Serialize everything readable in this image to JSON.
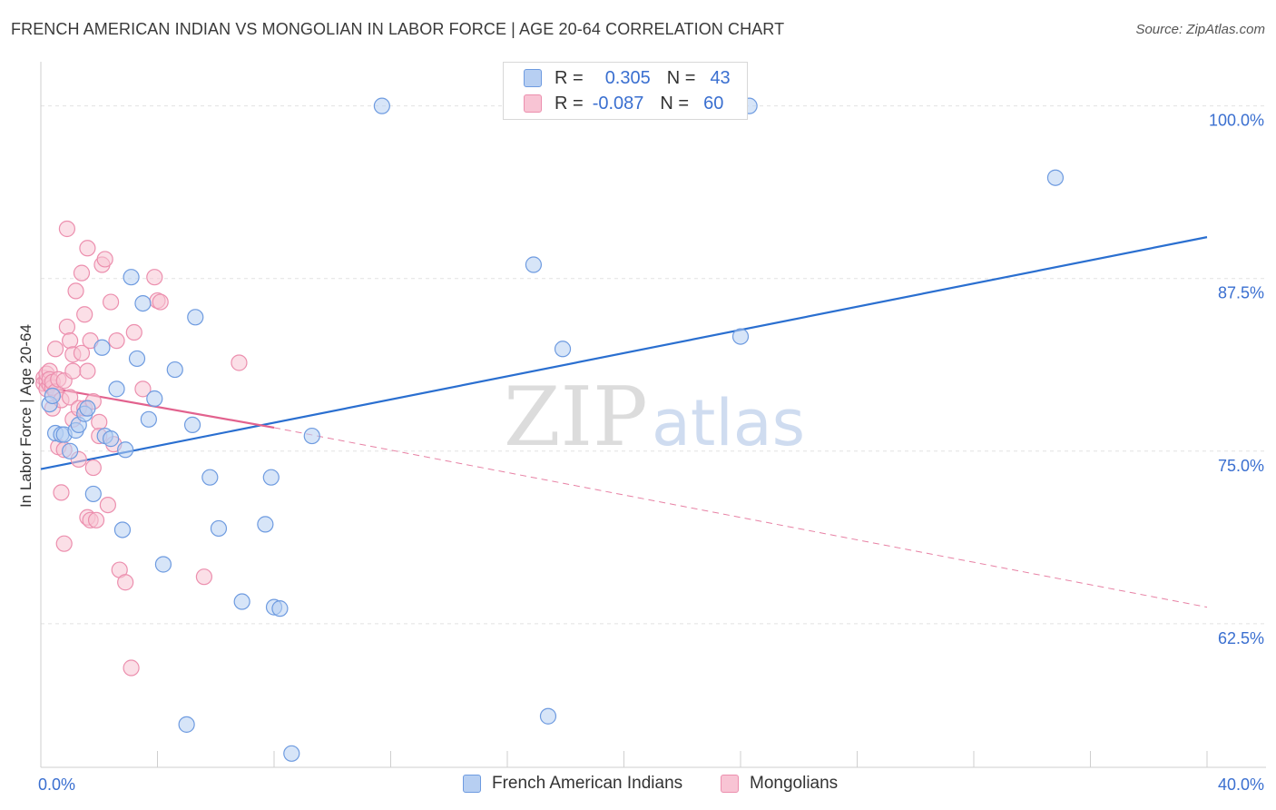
{
  "header": {
    "title": "FRENCH AMERICAN INDIAN VS MONGOLIAN IN LABOR FORCE | AGE 20-64 CORRELATION CHART",
    "source": "Source: ZipAtlas.com"
  },
  "legend_top": {
    "rows": [
      {
        "r_label": "R =",
        "r_value": "0.305",
        "n_label": "N =",
        "n_value": "43"
      },
      {
        "r_label": "R =",
        "r_value": "-0.087",
        "n_label": "N =",
        "n_value": "60"
      }
    ]
  },
  "watermark": {
    "zip": "ZIP",
    "atlas": "atlas"
  },
  "colors": {
    "blue_fill": "#b7cff2",
    "blue_stroke": "#6e9be0",
    "blue_line": "#2a6fd0",
    "pink_fill": "#f8c4d4",
    "pink_stroke": "#ec8fae",
    "pink_line": "#e2628e",
    "tick_label": "#3a6fd0",
    "grid": "#e2e2e2"
  },
  "chart_data": {
    "type": "scatter",
    "title": "FRENCH AMERICAN INDIAN VS MONGOLIAN IN LABOR FORCE | AGE 20-64 CORRELATION CHART",
    "xlabel": "",
    "ylabel": "In Labor Force | Age 20-64",
    "xlim": [
      0,
      40
    ],
    "ylim": [
      52.1,
      103.2
    ],
    "x_tick_labels": [
      {
        "value": 0,
        "label": "0.0%"
      },
      {
        "value": 40,
        "label": "40.0%"
      }
    ],
    "y_tick_labels": [
      {
        "value": 100,
        "label": "100.0%"
      },
      {
        "value": 87.5,
        "label": "87.5%"
      },
      {
        "value": 75,
        "label": "75.0%"
      },
      {
        "value": 62.5,
        "label": "62.5%"
      }
    ],
    "x_minor_ticks": [
      0,
      4,
      8,
      12,
      16,
      20,
      24,
      28,
      32,
      36,
      40
    ],
    "grid": true,
    "legend_position": "top-center",
    "series": [
      {
        "name": "French American Indians",
        "color": "blue",
        "R": 0.305,
        "N": 43,
        "trend": {
          "x": [
            0,
            40
          ],
          "y": [
            73.7,
            90.5
          ],
          "dashed_extension": false
        },
        "points": [
          {
            "x": 0.3,
            "y": 78.4
          },
          {
            "x": 0.5,
            "y": 76.3
          },
          {
            "x": 0.7,
            "y": 76.2
          },
          {
            "x": 0.8,
            "y": 76.2
          },
          {
            "x": 1.0,
            "y": 75.0
          },
          {
            "x": 1.2,
            "y": 76.5
          },
          {
            "x": 1.3,
            "y": 76.9
          },
          {
            "x": 1.5,
            "y": 77.7
          },
          {
            "x": 1.6,
            "y": 78.1
          },
          {
            "x": 1.8,
            "y": 71.9
          },
          {
            "x": 2.1,
            "y": 82.5
          },
          {
            "x": 2.2,
            "y": 76.1
          },
          {
            "x": 2.4,
            "y": 75.9
          },
          {
            "x": 2.6,
            "y": 79.5
          },
          {
            "x": 2.8,
            "y": 69.3
          },
          {
            "x": 2.9,
            "y": 75.1
          },
          {
            "x": 3.1,
            "y": 87.6
          },
          {
            "x": 3.3,
            "y": 81.7
          },
          {
            "x": 3.5,
            "y": 85.7
          },
          {
            "x": 3.7,
            "y": 77.3
          },
          {
            "x": 3.9,
            "y": 78.8
          },
          {
            "x": 4.2,
            "y": 66.8
          },
          {
            "x": 4.6,
            "y": 80.9
          },
          {
            "x": 5.0,
            "y": 55.2
          },
          {
            "x": 5.2,
            "y": 76.9
          },
          {
            "x": 5.3,
            "y": 84.7
          },
          {
            "x": 5.8,
            "y": 73.1
          },
          {
            "x": 6.1,
            "y": 69.4
          },
          {
            "x": 6.9,
            "y": 64.1
          },
          {
            "x": 7.7,
            "y": 69.7
          },
          {
            "x": 7.9,
            "y": 73.1
          },
          {
            "x": 8.0,
            "y": 63.7
          },
          {
            "x": 8.2,
            "y": 63.6
          },
          {
            "x": 8.6,
            "y": 53.1
          },
          {
            "x": 9.3,
            "y": 76.1
          },
          {
            "x": 11.7,
            "y": 100.0
          },
          {
            "x": 16.9,
            "y": 88.5
          },
          {
            "x": 17.4,
            "y": 55.8
          },
          {
            "x": 17.9,
            "y": 82.4
          },
          {
            "x": 24.0,
            "y": 83.3
          },
          {
            "x": 24.3,
            "y": 100.0
          },
          {
            "x": 34.8,
            "y": 94.8
          },
          {
            "x": 0.4,
            "y": 79.0
          }
        ]
      },
      {
        "name": "Mongolians",
        "color": "pink",
        "R": -0.087,
        "N": 60,
        "trend": {
          "x": [
            0,
            8
          ],
          "y": [
            79.7,
            76.7
          ],
          "dashed_extension": true,
          "dashed_x": [
            8,
            40
          ],
          "dashed_y": [
            76.7,
            63.7
          ]
        },
        "points": [
          {
            "x": 0.1,
            "y": 80.3
          },
          {
            "x": 0.1,
            "y": 79.9
          },
          {
            "x": 0.2,
            "y": 80.1
          },
          {
            "x": 0.2,
            "y": 79.5
          },
          {
            "x": 0.2,
            "y": 80.6
          },
          {
            "x": 0.3,
            "y": 79.8
          },
          {
            "x": 0.3,
            "y": 80.8
          },
          {
            "x": 0.3,
            "y": 80.2
          },
          {
            "x": 0.4,
            "y": 79.6
          },
          {
            "x": 0.4,
            "y": 78.1
          },
          {
            "x": 0.4,
            "y": 80.0
          },
          {
            "x": 0.5,
            "y": 82.4
          },
          {
            "x": 0.5,
            "y": 79.3
          },
          {
            "x": 0.6,
            "y": 80.2
          },
          {
            "x": 0.6,
            "y": 75.3
          },
          {
            "x": 0.7,
            "y": 72.0
          },
          {
            "x": 0.7,
            "y": 78.7
          },
          {
            "x": 0.8,
            "y": 80.1
          },
          {
            "x": 0.8,
            "y": 75.1
          },
          {
            "x": 0.8,
            "y": 68.3
          },
          {
            "x": 0.9,
            "y": 91.1
          },
          {
            "x": 0.9,
            "y": 84.0
          },
          {
            "x": 1.0,
            "y": 78.9
          },
          {
            "x": 1.0,
            "y": 83.0
          },
          {
            "x": 1.1,
            "y": 82.0
          },
          {
            "x": 1.1,
            "y": 80.8
          },
          {
            "x": 1.1,
            "y": 77.3
          },
          {
            "x": 1.2,
            "y": 86.6
          },
          {
            "x": 1.3,
            "y": 78.1
          },
          {
            "x": 1.3,
            "y": 74.4
          },
          {
            "x": 1.4,
            "y": 82.1
          },
          {
            "x": 1.4,
            "y": 87.9
          },
          {
            "x": 1.5,
            "y": 84.9
          },
          {
            "x": 1.5,
            "y": 78.1
          },
          {
            "x": 1.6,
            "y": 89.7
          },
          {
            "x": 1.6,
            "y": 80.8
          },
          {
            "x": 1.6,
            "y": 70.2
          },
          {
            "x": 1.7,
            "y": 83.0
          },
          {
            "x": 1.7,
            "y": 70.0
          },
          {
            "x": 1.8,
            "y": 78.6
          },
          {
            "x": 1.8,
            "y": 73.8
          },
          {
            "x": 1.9,
            "y": 70.0
          },
          {
            "x": 2.0,
            "y": 77.1
          },
          {
            "x": 2.0,
            "y": 76.1
          },
          {
            "x": 2.1,
            "y": 88.5
          },
          {
            "x": 2.2,
            "y": 88.9
          },
          {
            "x": 2.3,
            "y": 71.1
          },
          {
            "x": 2.4,
            "y": 85.8
          },
          {
            "x": 2.5,
            "y": 75.5
          },
          {
            "x": 2.6,
            "y": 83.0
          },
          {
            "x": 2.7,
            "y": 66.4
          },
          {
            "x": 2.9,
            "y": 65.5
          },
          {
            "x": 3.1,
            "y": 59.3
          },
          {
            "x": 3.2,
            "y": 83.6
          },
          {
            "x": 3.5,
            "y": 79.5
          },
          {
            "x": 3.9,
            "y": 87.6
          },
          {
            "x": 4.0,
            "y": 85.9
          },
          {
            "x": 4.1,
            "y": 85.8
          },
          {
            "x": 5.6,
            "y": 65.9
          },
          {
            "x": 6.8,
            "y": 81.4
          }
        ]
      }
    ]
  }
}
